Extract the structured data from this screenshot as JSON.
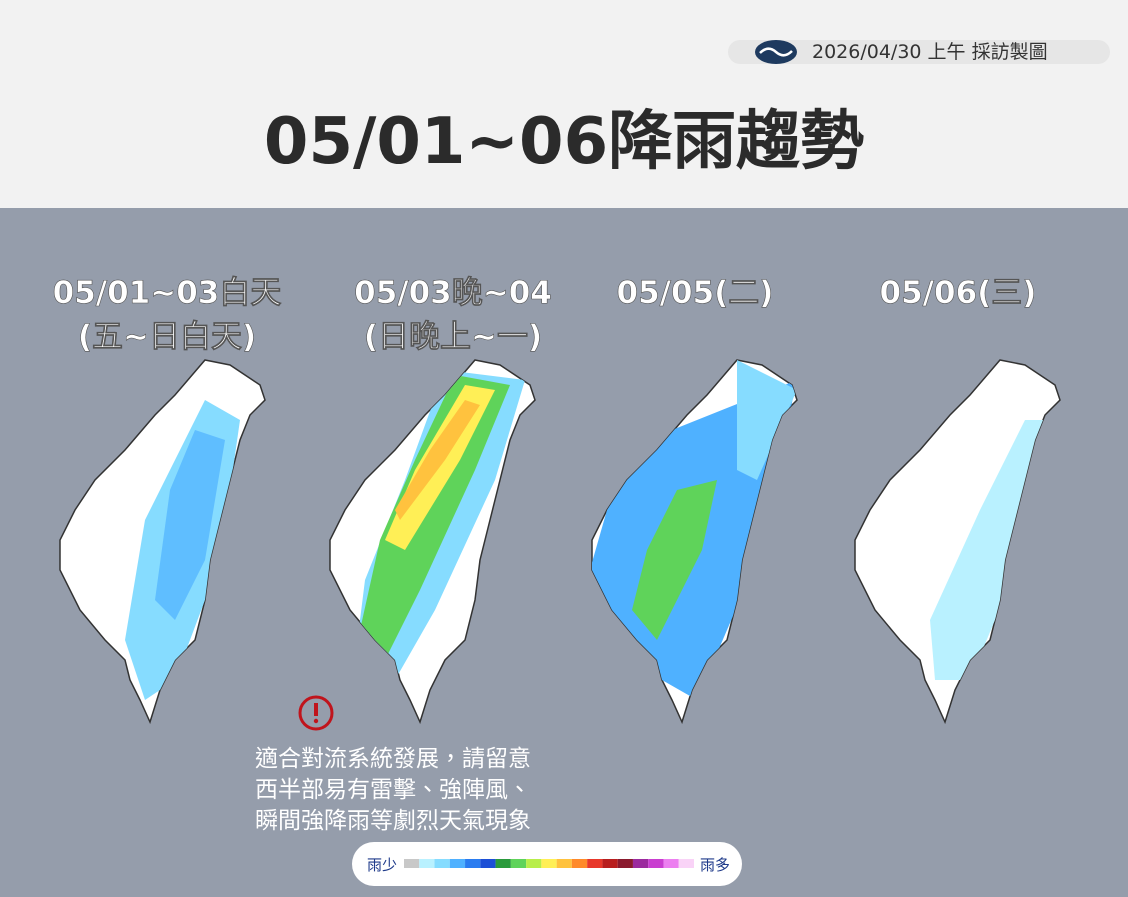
{
  "header": {
    "date": "2026/04/30 上午 採訪製圖",
    "title": "05/01~06降雨趨勢"
  },
  "panels": [
    {
      "lines": [
        "05/01~03白天",
        "(五~日白天)"
      ]
    },
    {
      "lines": [
        "05/03晚~04",
        "(日晚上~一)"
      ]
    },
    {
      "lines": [
        "05/05(二)"
      ]
    },
    {
      "lines": [
        "05/06(三)"
      ]
    }
  ],
  "warning": {
    "lines": [
      "適合對流系統發展，請留意",
      "西半部易有雷擊、強陣風、",
      "瞬間強降雨等劇烈天氣現象"
    ]
  },
  "legend": {
    "low": "雨少",
    "high": "雨多",
    "colors": [
      "#c8c8c8",
      "#b9f1ff",
      "#86dcff",
      "#4fb1ff",
      "#2a7cf0",
      "#1c4fd6",
      "#2a9a3c",
      "#5fd35a",
      "#b8ee4a",
      "#ffef56",
      "#ffc23e",
      "#ff8a2a",
      "#e8382a",
      "#b81e1e",
      "#8a1a2e",
      "#9b2a9e",
      "#c93ed0",
      "#ec7ff0",
      "#f9d3f7"
    ]
  }
}
